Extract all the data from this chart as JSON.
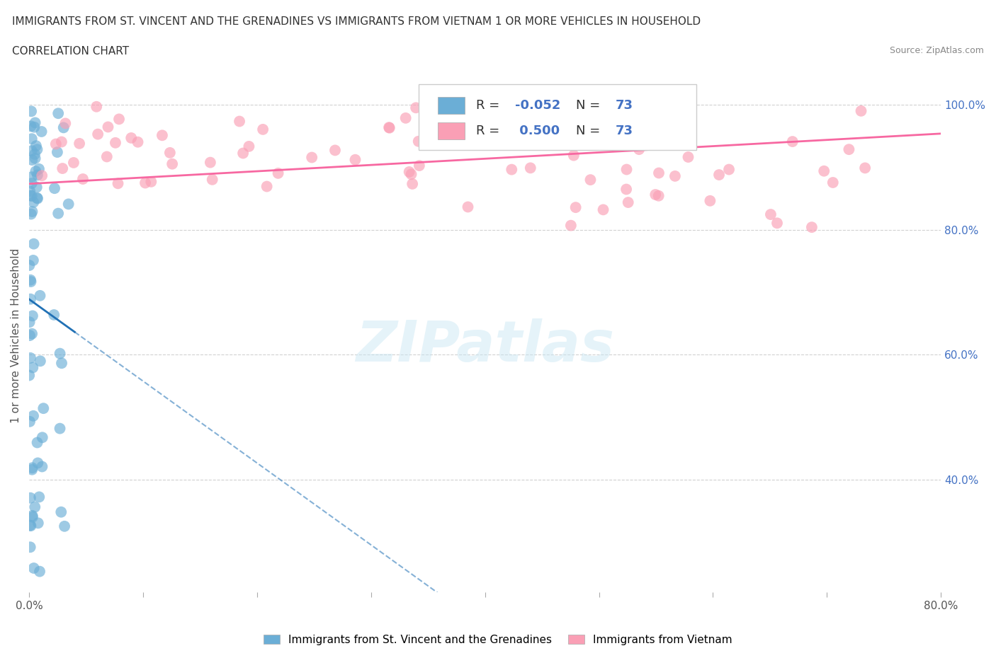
{
  "title_line1": "IMMIGRANTS FROM ST. VINCENT AND THE GRENADINES VS IMMIGRANTS FROM VIETNAM 1 OR MORE VEHICLES IN HOUSEHOLD",
  "title_line2": "CORRELATION CHART",
  "source_text": "Source: ZipAtlas.com",
  "ylabel": "1 or more Vehicles in Household",
  "watermark": "ZIPatlas",
  "blue_color": "#6baed6",
  "pink_color": "#fa9fb5",
  "blue_line_color": "#2171b5",
  "pink_line_color": "#f768a1",
  "blue_R": -0.052,
  "blue_N": 73,
  "pink_R": 0.5,
  "pink_N": 73,
  "xlim": [
    0.0,
    0.8
  ],
  "ylim": [
    0.22,
    1.04
  ],
  "xticks": [
    0.0,
    0.1,
    0.2,
    0.3,
    0.4,
    0.5,
    0.6,
    0.7,
    0.8
  ],
  "yticks_right": [
    0.4,
    0.6,
    0.8,
    1.0
  ],
  "yticklabels_right": [
    "40.0%",
    "60.0%",
    "80.0%",
    "100.0%"
  ],
  "grid_color": "#cccccc",
  "background_color": "#ffffff",
  "legend_blue_label": "Immigrants from St. Vincent and the Grenadines",
  "legend_pink_label": "Immigrants from Vietnam"
}
